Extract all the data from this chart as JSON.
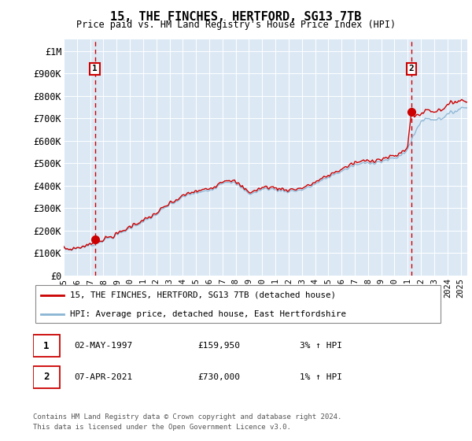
{
  "title": "15, THE FINCHES, HERTFORD, SG13 7TB",
  "subtitle": "Price paid vs. HM Land Registry's House Price Index (HPI)",
  "ylabel_ticks": [
    "£0",
    "£100K",
    "£200K",
    "£300K",
    "£400K",
    "£500K",
    "£600K",
    "£700K",
    "£800K",
    "£900K",
    "£1M"
  ],
  "ytick_values": [
    0,
    100000,
    200000,
    300000,
    400000,
    500000,
    600000,
    700000,
    800000,
    900000,
    1000000
  ],
  "ylim": [
    0,
    1050000
  ],
  "xlim_start": 1995.0,
  "xlim_end": 2025.5,
  "bg_color": "#dce9f5",
  "grid_color": "#ffffff",
  "hpi_color": "#8ab4d4",
  "price_color": "#cc0000",
  "dashed_color": "#cc0000",
  "marker1_x": 1997.35,
  "marker1_y": 159950,
  "marker2_x": 2021.27,
  "marker2_y": 730000,
  "legend_line1": "15, THE FINCHES, HERTFORD, SG13 7TB (detached house)",
  "legend_line2": "HPI: Average price, detached house, East Hertfordshire",
  "marker1_date": "02-MAY-1997",
  "marker1_price": "£159,950",
  "marker1_hpi": "3% ↑ HPI",
  "marker2_date": "07-APR-2021",
  "marker2_price": "£730,000",
  "marker2_hpi": "1% ↑ HPI",
  "footer1": "Contains HM Land Registry data © Crown copyright and database right 2024.",
  "footer2": "This data is licensed under the Open Government Licence v3.0.",
  "xtick_years": [
    1995,
    1996,
    1997,
    1998,
    1999,
    2000,
    2001,
    2002,
    2003,
    2004,
    2005,
    2006,
    2007,
    2008,
    2009,
    2010,
    2011,
    2012,
    2013,
    2014,
    2015,
    2016,
    2017,
    2018,
    2019,
    2020,
    2021,
    2022,
    2023,
    2024,
    2025
  ]
}
